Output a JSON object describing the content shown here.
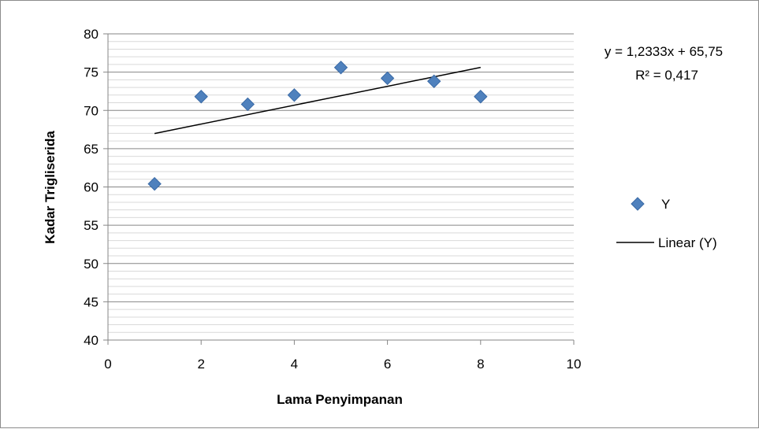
{
  "chart_data": {
    "type": "scatter",
    "xlabel": "Lama Penyimpanan",
    "ylabel": "Kadar Trigliserida",
    "xlim": [
      0,
      10
    ],
    "ylim": [
      40,
      80
    ],
    "x_ticks": [
      0,
      2,
      4,
      6,
      8,
      10
    ],
    "y_ticks": [
      40,
      45,
      50,
      55,
      60,
      65,
      70,
      75,
      80
    ],
    "grid": true,
    "legend_position": "right",
    "series": [
      {
        "name": "Y",
        "color": "#4f81bd",
        "marker": "diamond",
        "points": [
          {
            "x": 1,
            "y": 60.4
          },
          {
            "x": 2,
            "y": 71.8
          },
          {
            "x": 3,
            "y": 70.8
          },
          {
            "x": 4,
            "y": 72.0
          },
          {
            "x": 5,
            "y": 75.6
          },
          {
            "x": 6,
            "y": 74.2
          },
          {
            "x": 7,
            "y": 73.8
          },
          {
            "x": 8,
            "y": 71.8
          }
        ]
      }
    ],
    "trendline": {
      "name": "Linear (Y)",
      "color": "#000000",
      "slope": 1.2333,
      "intercept": 65.75,
      "x_range": [
        1,
        8
      ]
    },
    "equation_text": "y = 1,2333x + 65,75",
    "r2_text": "R² = 0,417",
    "legend": [
      {
        "label": "Y",
        "kind": "marker"
      },
      {
        "label": "Linear (Y)",
        "kind": "line"
      }
    ]
  }
}
